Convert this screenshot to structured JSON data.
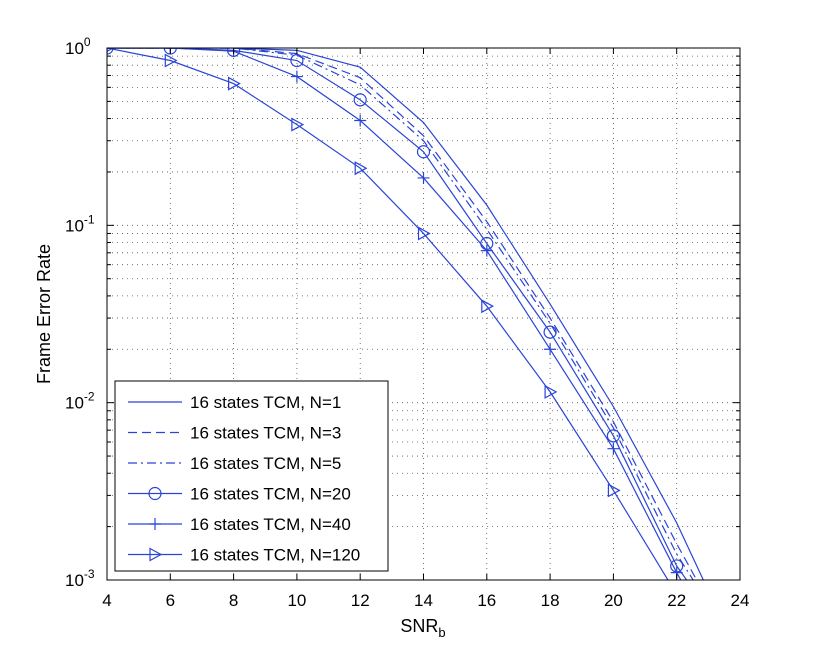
{
  "chart_data": {
    "type": "line",
    "title": "",
    "xlabel": "SNR",
    "xlabel_sub": "b",
    "ylabel": "Frame Error Rate",
    "xlim": [
      4,
      24
    ],
    "ylim": [
      0.001,
      1
    ],
    "yscale": "log",
    "grid": true,
    "legend_position": "bottom-left",
    "x_ticks": [
      "4",
      "6",
      "8",
      "10",
      "12",
      "14",
      "16",
      "18",
      "20",
      "22",
      "24"
    ],
    "y_ticks": [
      {
        "base": "10",
        "exp": "0",
        "value": 1
      },
      {
        "base": "10",
        "exp": "-1",
        "value": 0.1
      },
      {
        "base": "10",
        "exp": "-2",
        "value": 0.01
      },
      {
        "base": "10",
        "exp": "-3",
        "value": 0.001
      }
    ],
    "line_color": "#2a45d6",
    "series": [
      {
        "name": "16 states TCM, N=1",
        "line": "solid",
        "marker": "none",
        "x": [
          4,
          6,
          8,
          10,
          12,
          14,
          16,
          18,
          20,
          22,
          22.9
        ],
        "y": [
          1,
          1,
          1,
          0.97,
          0.78,
          0.38,
          0.13,
          0.036,
          0.0095,
          0.0021,
          0.00095
        ]
      },
      {
        "name": "16 states TCM, N=3",
        "line": "dashed",
        "marker": "none",
        "x": [
          4,
          6,
          8,
          10,
          12,
          14,
          16,
          18,
          20,
          22,
          22.7
        ],
        "y": [
          1,
          1,
          1,
          0.93,
          0.68,
          0.32,
          0.105,
          0.03,
          0.0078,
          0.0016,
          0.00095
        ]
      },
      {
        "name": "16 states TCM, N=5",
        "line": "dashdot",
        "marker": "none",
        "x": [
          4,
          6,
          8,
          10,
          12,
          14,
          16,
          18,
          20,
          22,
          22.6
        ],
        "y": [
          1,
          1,
          1,
          0.91,
          0.62,
          0.3,
          0.095,
          0.028,
          0.0072,
          0.0014,
          0.00095
        ]
      },
      {
        "name": "16 states TCM, N=20",
        "line": "solid",
        "marker": "circle",
        "x": [
          4,
          6,
          8,
          10,
          12,
          14,
          16,
          18,
          20,
          22,
          22.4
        ],
        "y": [
          1,
          1,
          0.97,
          0.85,
          0.51,
          0.26,
          0.079,
          0.025,
          0.0065,
          0.0012,
          0.00095
        ]
      },
      {
        "name": "16 states TCM, N=40",
        "line": "solid",
        "marker": "plus",
        "x": [
          4,
          6,
          8,
          10,
          12,
          14,
          16,
          18,
          20,
          22,
          22.2
        ],
        "y": [
          1,
          1,
          0.96,
          0.69,
          0.39,
          0.185,
          0.072,
          0.02,
          0.0055,
          0.0011,
          0.00095
        ]
      },
      {
        "name": "16 states TCM, N=120",
        "line": "solid",
        "marker": "triangle-right",
        "x": [
          4,
          6,
          8,
          10,
          12,
          14,
          16,
          18,
          20,
          21.8
        ],
        "y": [
          1,
          0.85,
          0.63,
          0.37,
          0.21,
          0.09,
          0.035,
          0.0115,
          0.0032,
          0.00095
        ]
      }
    ]
  }
}
